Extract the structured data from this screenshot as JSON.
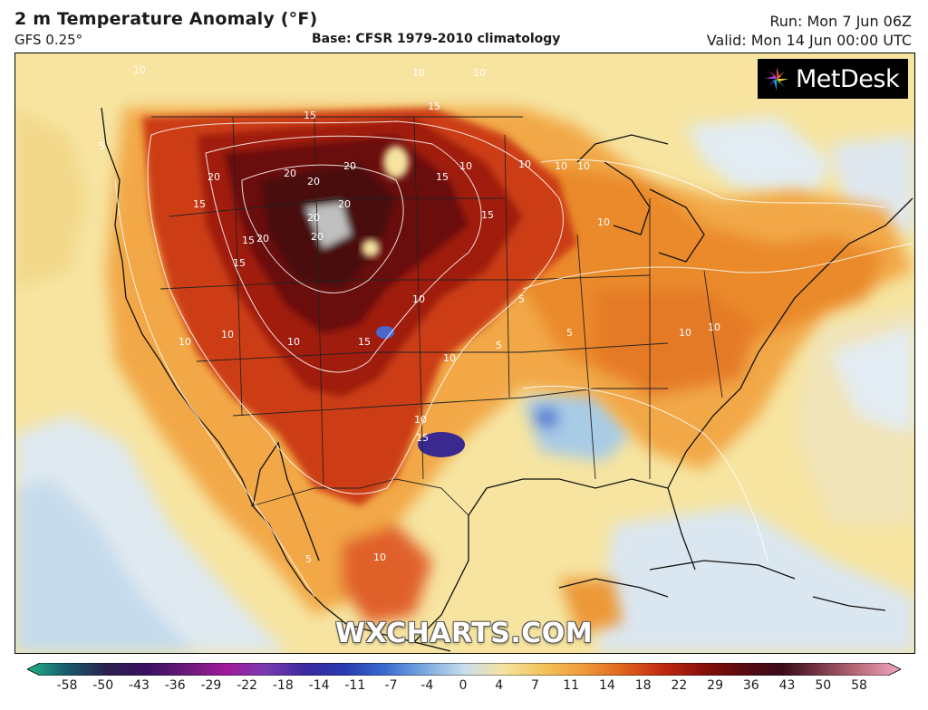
{
  "header": {
    "title": "2 m Temperature Anomaly (°F)",
    "model": "GFS 0.25°",
    "base": "Base: CFSR 1979-2010 climatology",
    "run": "Run: Mon 7 Jun 06Z",
    "valid": "Valid: Mon 14 Jun 00:00 UTC"
  },
  "logo": {
    "text": "MetDesk",
    "icon": "metdesk-star-icon"
  },
  "watermark": "WXCHARTS.COM",
  "contour_labels": [
    "5",
    "10",
    "15",
    "20"
  ],
  "colorbar": {
    "ticks": [
      "-58",
      "-50",
      "-43",
      "-36",
      "-29",
      "-22",
      "-18",
      "-14",
      "-11",
      "-7",
      "-4",
      "0",
      "4",
      "7",
      "11",
      "14",
      "18",
      "22",
      "29",
      "36",
      "43",
      "50",
      "58"
    ],
    "colors": [
      "#20b08a",
      "#1a5a6a",
      "#2a2050",
      "#3a1060",
      "#6a1a7a",
      "#a01a9a",
      "#7a3ab0",
      "#3a2aa0",
      "#2a3ab0",
      "#3a6ad0",
      "#7aa8e0",
      "#c8ddee",
      "#f4e4a0",
      "#f2c45a",
      "#f09a3a",
      "#e0641e",
      "#c02a10",
      "#8a1008",
      "#5a0a10",
      "#3a0a18",
      "#7a3a4a",
      "#c07080",
      "#f0a8c0"
    ]
  },
  "colors": {
    "warm_light": "#f4dc8a",
    "warm_mid": "#f0a040",
    "warm_strong": "#d9501a",
    "hot": "#a8200c",
    "very_hot": "#5a0a10",
    "cool_light": "#d8e6f0",
    "cool": "#8ab8e0",
    "cold": "#3a3aa0"
  }
}
